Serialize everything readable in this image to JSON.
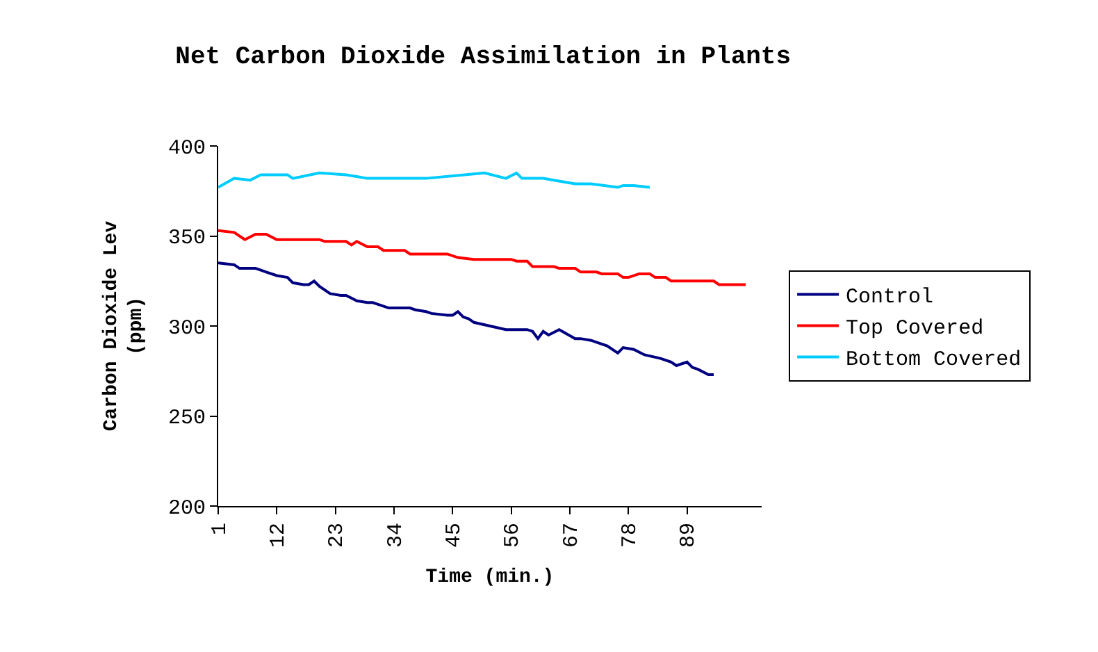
{
  "chart_data": {
    "type": "line",
    "title": "Net Carbon Dioxide Assimilation in Plants",
    "xlabel": "Time (min.)",
    "ylabel": "Carbon Dioxide Lev\n(ppm)",
    "xlim": [
      1,
      103
    ],
    "xticks": [
      1,
      12,
      23,
      34,
      45,
      56,
      67,
      78,
      89
    ],
    "ylim": [
      200,
      400
    ],
    "yticks": [
      200,
      250,
      300,
      350,
      400
    ],
    "legend": "right",
    "marker": "none",
    "line_style": "solid",
    "series": [
      {
        "name": "Control",
        "color": "#000080",
        "x": [
          1,
          4,
          5,
          8,
          9,
          10,
          12,
          14,
          15,
          17,
          18,
          19,
          20,
          22,
          24,
          25,
          27,
          29,
          30,
          31,
          33,
          37,
          38,
          40,
          41,
          44,
          45,
          46,
          47,
          48,
          49,
          52,
          55,
          57,
          59,
          60,
          61,
          62,
          63,
          65,
          68,
          69,
          71,
          72,
          74,
          76,
          77,
          79,
          81,
          84,
          86,
          87,
          89,
          90,
          91,
          93,
          94
        ],
        "values": [
          335,
          334,
          332,
          332,
          331,
          330,
          328,
          327,
          324,
          323,
          323,
          325,
          322,
          318,
          317,
          317,
          314,
          313,
          313,
          312,
          310,
          310,
          309,
          308,
          307,
          306,
          306,
          308,
          305,
          304,
          302,
          300,
          298,
          298,
          298,
          297,
          293,
          297,
          295,
          298,
          293,
          293,
          292,
          291,
          289,
          285,
          288,
          287,
          284,
          282,
          280,
          278,
          280,
          277,
          276,
          273,
          273
        ]
      },
      {
        "name": "Top Covered",
        "color": "#ff0000",
        "x": [
          1,
          4,
          6,
          8,
          10,
          12,
          20,
          21,
          25,
          26,
          27,
          29,
          31,
          32,
          36,
          37,
          44,
          46,
          49,
          56,
          57,
          59,
          60,
          64,
          65,
          68,
          69,
          72,
          73,
          76,
          77,
          78,
          80,
          82,
          83,
          85,
          86,
          94,
          95,
          100
        ],
        "values": [
          353,
          352,
          348,
          351,
          351,
          348,
          348,
          347,
          347,
          345,
          347,
          344,
          344,
          342,
          342,
          340,
          340,
          338,
          337,
          337,
          336,
          336,
          333,
          333,
          332,
          332,
          330,
          330,
          329,
          329,
          327,
          327,
          329,
          329,
          327,
          327,
          325,
          325,
          323,
          323
        ]
      },
      {
        "name": "Bottom Covered",
        "color": "#00ccff",
        "x": [
          1,
          4,
          7,
          9,
          14,
          15,
          20,
          25,
          29,
          34,
          40,
          51,
          55,
          57,
          58,
          62,
          64,
          68,
          71,
          76,
          77,
          79,
          82
        ],
        "values": [
          377,
          382,
          381,
          384,
          384,
          382,
          385,
          384,
          382,
          382,
          382,
          385,
          382,
          385,
          382,
          382,
          381,
          379,
          379,
          377,
          378,
          378,
          377
        ]
      }
    ]
  }
}
